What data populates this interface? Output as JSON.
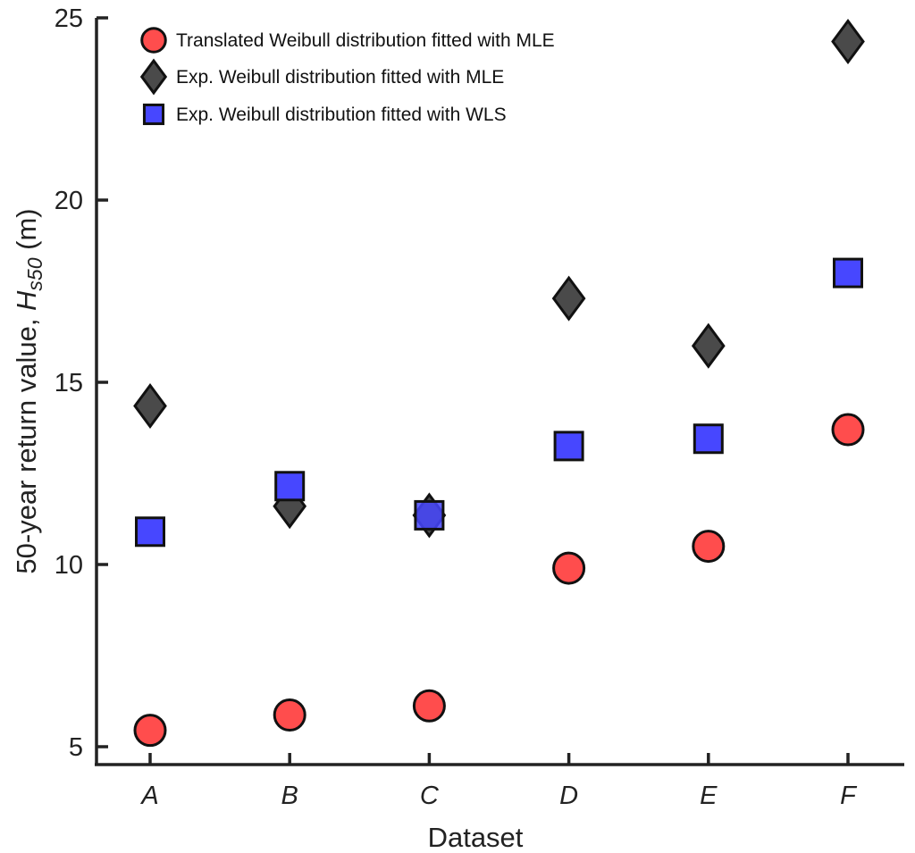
{
  "chart_data": {
    "type": "scatter",
    "title": "",
    "xlabel": "Dataset",
    "ylabel_prefix": "50-year return value, ",
    "ylabel_var": "H",
    "ylabel_sub": "s50",
    "ylabel_unit": " (m)",
    "categories": [
      "A",
      "B",
      "C",
      "D",
      "E",
      "F"
    ],
    "ylim": [
      4.5,
      25
    ],
    "yticks": [
      5,
      10,
      15,
      20,
      25
    ],
    "legend_position": "top-left",
    "series": [
      {
        "name": "Translated Weibull distribution fitted with MLE",
        "marker": "circle",
        "color": "#ff4d4d",
        "values": [
          5.45,
          5.87,
          6.12,
          9.9,
          10.5,
          13.7
        ]
      },
      {
        "name": "Exp. Weibull distribution fitted with MLE",
        "marker": "diamond",
        "color": "#4a4a4a",
        "values": [
          14.35,
          11.6,
          11.35,
          17.3,
          16.0,
          24.35
        ]
      },
      {
        "name": "Exp. Weibull distribution fitted with WLS",
        "marker": "square",
        "color": "#4747ff",
        "values": [
          10.9,
          12.15,
          11.35,
          13.25,
          13.45,
          18.0
        ]
      }
    ]
  }
}
